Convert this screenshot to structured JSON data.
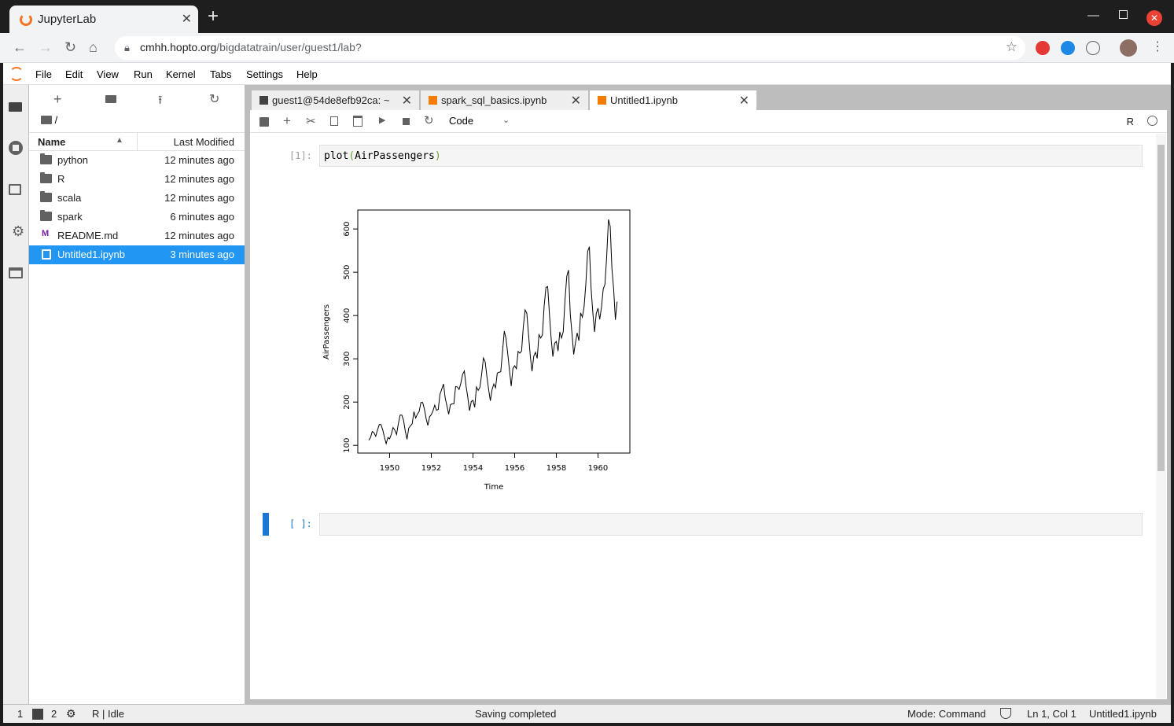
{
  "browser": {
    "tab_title": "JupyterLab",
    "new_tab": "+",
    "url_host": "cmhh.hopto.org",
    "url_path": "/bigdatatrain/user/guest1/lab?"
  },
  "menu": [
    "File",
    "Edit",
    "View",
    "Run",
    "Kernel",
    "Tabs",
    "Settings",
    "Help"
  ],
  "filebrowser": {
    "path": "/",
    "col_name": "Name",
    "col_modified": "Last Modified",
    "files": [
      {
        "name": "python",
        "modified": "12 minutes ago",
        "kind": "folder"
      },
      {
        "name": "R",
        "modified": "12 minutes ago",
        "kind": "folder"
      },
      {
        "name": "scala",
        "modified": "12 minutes ago",
        "kind": "folder"
      },
      {
        "name": "spark",
        "modified": "6 minutes ago",
        "kind": "folder"
      },
      {
        "name": "README.md",
        "modified": "12 minutes ago",
        "kind": "markdown"
      },
      {
        "name": "Untitled1.ipynb",
        "modified": "3 minutes ago",
        "kind": "notebook",
        "selected": true
      }
    ]
  },
  "doc_tabs": [
    {
      "label": "guest1@54de8efb92ca: ~",
      "kind": "terminal"
    },
    {
      "label": "spark_sql_basics.ipynb",
      "kind": "notebook"
    },
    {
      "label": "Untitled1.ipynb",
      "kind": "notebook",
      "active": true
    }
  ],
  "notebook": {
    "cell_type": "Code",
    "kernel": "R",
    "cells": [
      {
        "prompt": "[1]:",
        "code_fn": "plot",
        "code_open": "(",
        "code_arg": "AirPassengers",
        "code_close": ")"
      },
      {
        "prompt": "[ ]:",
        "code": ""
      }
    ]
  },
  "chart_data": {
    "type": "line",
    "xlabel": "Time",
    "ylabel": "AirPassengers",
    "xlim": [
      1949,
      1961
    ],
    "ylim": [
      104,
      622
    ],
    "xticks": [
      1950,
      1952,
      1954,
      1956,
      1958,
      1960
    ],
    "yticks": [
      100,
      200,
      300,
      400,
      500,
      600
    ],
    "x_start": 1949,
    "frequency": 12,
    "values": [
      112,
      118,
      132,
      129,
      121,
      135,
      148,
      148,
      136,
      119,
      104,
      118,
      115,
      126,
      141,
      135,
      125,
      149,
      170,
      170,
      158,
      133,
      114,
      140,
      145,
      150,
      178,
      163,
      172,
      178,
      199,
      199,
      184,
      162,
      146,
      166,
      171,
      180,
      193,
      181,
      183,
      218,
      230,
      242,
      209,
      191,
      172,
      194,
      196,
      196,
      236,
      235,
      229,
      243,
      264,
      272,
      237,
      211,
      180,
      201,
      204,
      188,
      235,
      227,
      234,
      264,
      302,
      293,
      259,
      229,
      203,
      229,
      242,
      233,
      267,
      269,
      270,
      315,
      364,
      347,
      312,
      274,
      237,
      278,
      284,
      277,
      317,
      313,
      318,
      374,
      413,
      405,
      355,
      306,
      271,
      306,
      315,
      301,
      356,
      348,
      355,
      422,
      465,
      467,
      404,
      347,
      305,
      336,
      340,
      318,
      362,
      348,
      363,
      435,
      491,
      505,
      404,
      359,
      310,
      337,
      360,
      342,
      406,
      396,
      420,
      472,
      548,
      559,
      463,
      407,
      362,
      405,
      417,
      391,
      419,
      461,
      472,
      535,
      622,
      606,
      508,
      461,
      390,
      432
    ]
  },
  "statusbar": {
    "terminals": "1",
    "kernels": "2",
    "kernel_status": "R | Idle",
    "message": "Saving completed",
    "mode": "Mode: Command",
    "position": "Ln 1, Col 1",
    "file": "Untitled1.ipynb"
  }
}
